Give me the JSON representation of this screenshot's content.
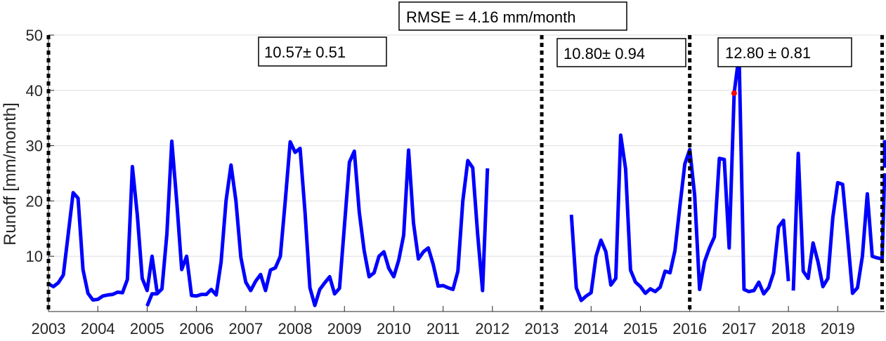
{
  "chart_data": {
    "type": "line",
    "title": "",
    "xlabel": "",
    "ylabel": "Runoff [mm/month]",
    "xlim": [
      2003,
      2019.95
    ],
    "ylim": [
      0,
      50
    ],
    "y_ticks": [
      10,
      20,
      30,
      40,
      50
    ],
    "x_tick_labels": [
      "2003",
      "2004",
      "2005",
      "2006",
      "2007",
      "2008",
      "2009",
      "2010",
      "2011",
      "2012",
      "2013",
      "2014",
      "2015",
      "2016",
      "2017",
      "2018",
      "2019"
    ],
    "grid": "horizontal",
    "annotations": {
      "rmse": "RMSE = 4.16 mm/month",
      "period1": "10.57± 0.51",
      "period2": "10.80± 0.94",
      "period3": "12.80 ± 0.81"
    },
    "series": [
      {
        "color": "#0000ff",
        "segments": [
          [
            [
              2003.0,
              5.0
            ],
            [
              2003.1,
              4.5
            ],
            [
              2003.2,
              5.2
            ],
            [
              2003.3,
              6.6
            ],
            [
              2003.4,
              14.0
            ],
            [
              2003.5,
              21.5
            ],
            [
              2003.6,
              20.5
            ],
            [
              2003.7,
              7.6
            ],
            [
              2003.8,
              3.3
            ],
            [
              2003.9,
              2.1
            ],
            [
              2004.0,
              2.2
            ],
            [
              2004.1,
              2.8
            ],
            [
              2004.2,
              3.0
            ],
            [
              2004.3,
              3.1
            ],
            [
              2004.4,
              3.5
            ],
            [
              2004.5,
              3.4
            ],
            [
              2004.6,
              5.8
            ],
            [
              2004.7,
              26.2
            ],
            [
              2004.8,
              17.5
            ],
            [
              2004.9,
              6.0
            ],
            [
              2005.0,
              3.8
            ],
            [
              2005.1,
              10.0
            ],
            [
              2005.2,
              3.6
            ]
          ],
          [
            [
              2005.0,
              1.0
            ],
            [
              2005.1,
              3.2
            ],
            [
              2005.2,
              3.2
            ],
            [
              2005.3,
              4.1
            ],
            [
              2005.4,
              14.0
            ],
            [
              2005.5,
              30.8
            ],
            [
              2005.6,
              20.0
            ],
            [
              2005.7,
              7.6
            ],
            [
              2005.8,
              10.0
            ],
            [
              2005.9,
              2.9
            ],
            [
              2006.0,
              2.8
            ],
            [
              2006.1,
              3.1
            ],
            [
              2006.2,
              3.1
            ],
            [
              2006.3,
              4.0
            ],
            [
              2006.4,
              3.0
            ],
            [
              2006.5,
              9.0
            ],
            [
              2006.6,
              20.0
            ],
            [
              2006.7,
              26.5
            ],
            [
              2006.8,
              20.0
            ],
            [
              2006.9,
              9.8
            ],
            [
              2007.0,
              5.3
            ],
            [
              2007.1,
              3.8
            ],
            [
              2007.2,
              5.5
            ],
            [
              2007.3,
              6.7
            ],
            [
              2007.4,
              3.8
            ],
            [
              2007.5,
              7.5
            ],
            [
              2007.6,
              7.9
            ],
            [
              2007.7,
              10.0
            ],
            [
              2007.8,
              20.0
            ],
            [
              2007.9,
              30.7
            ],
            [
              2008.0,
              28.8
            ],
            [
              2008.1,
              29.5
            ],
            [
              2008.2,
              18.0
            ],
            [
              2008.3,
              4.3
            ],
            [
              2008.4,
              1.1
            ],
            [
              2008.5,
              4.0
            ],
            [
              2008.6,
              5.2
            ],
            [
              2008.7,
              6.3
            ],
            [
              2008.8,
              3.2
            ],
            [
              2008.9,
              4.2
            ],
            [
              2009.0,
              15.5
            ],
            [
              2009.1,
              27.0
            ],
            [
              2009.2,
              29.0
            ],
            [
              2009.3,
              18.0
            ],
            [
              2009.4,
              11.0
            ],
            [
              2009.5,
              6.3
            ],
            [
              2009.6,
              7.0
            ],
            [
              2009.7,
              10.0
            ],
            [
              2009.8,
              10.8
            ],
            [
              2009.9,
              7.8
            ],
            [
              2010.0,
              6.3
            ],
            [
              2010.1,
              9.3
            ],
            [
              2010.2,
              13.8
            ],
            [
              2010.3,
              29.2
            ],
            [
              2010.4,
              16.0
            ],
            [
              2010.5,
              9.5
            ],
            [
              2010.6,
              10.8
            ],
            [
              2010.7,
              11.5
            ],
            [
              2010.8,
              8.5
            ],
            [
              2010.9,
              4.6
            ],
            [
              2011.0,
              4.7
            ],
            [
              2011.1,
              4.3
            ],
            [
              2011.2,
              4.0
            ],
            [
              2011.3,
              7.3
            ],
            [
              2011.4,
              20.0
            ],
            [
              2011.5,
              27.3
            ],
            [
              2011.6,
              26.0
            ],
            [
              2011.7,
              14.0
            ],
            [
              2011.8,
              3.8
            ],
            [
              2011.9,
              25.9
            ]
          ],
          [
            [
              2013.6,
              17.5
            ],
            [
              2013.7,
              4.3
            ],
            [
              2013.8,
              2.0
            ],
            [
              2013.9,
              2.8
            ],
            [
              2014.0,
              3.4
            ],
            [
              2014.1,
              10.0
            ],
            [
              2014.2,
              12.9
            ],
            [
              2014.3,
              10.8
            ],
            [
              2014.4,
              4.8
            ],
            [
              2014.5,
              6.0
            ],
            [
              2014.6,
              31.9
            ],
            [
              2014.7,
              25.8
            ],
            [
              2014.8,
              7.5
            ],
            [
              2014.9,
              5.3
            ],
            [
              2015.0,
              4.5
            ],
            [
              2015.1,
              3.3
            ],
            [
              2015.2,
              4.1
            ],
            [
              2015.3,
              3.6
            ],
            [
              2015.4,
              4.4
            ],
            [
              2015.5,
              7.3
            ],
            [
              2015.6,
              7.0
            ],
            [
              2015.7,
              11.0
            ],
            [
              2015.8,
              19.0
            ],
            [
              2015.9,
              26.7
            ],
            [
              2016.0,
              29.3
            ],
            [
              2016.1,
              21.0
            ],
            [
              2016.2,
              4.0
            ],
            [
              2016.3,
              9.0
            ],
            [
              2016.4,
              11.5
            ],
            [
              2016.5,
              13.5
            ],
            [
              2016.6,
              27.7
            ],
            [
              2016.7,
              27.5
            ],
            [
              2016.8,
              11.5
            ],
            [
              2016.9,
              39.5
            ],
            [
              2017.0,
              46.5
            ],
            [
              2017.1,
              4.0
            ],
            [
              2017.2,
              3.6
            ],
            [
              2017.3,
              3.8
            ],
            [
              2017.4,
              5.3
            ],
            [
              2017.5,
              3.2
            ],
            [
              2017.6,
              4.3
            ],
            [
              2017.7,
              7.0
            ],
            [
              2017.8,
              15.3
            ],
            [
              2017.9,
              16.5
            ],
            [
              2018.0,
              5.5
            ]
          ],
          [
            [
              2018.1,
              3.8
            ],
            [
              2018.2,
              28.6
            ],
            [
              2018.3,
              7.3
            ],
            [
              2018.4,
              6.0
            ],
            [
              2018.5,
              12.4
            ],
            [
              2018.6,
              9.0
            ],
            [
              2018.7,
              4.5
            ],
            [
              2018.8,
              6.0
            ],
            [
              2018.9,
              17.0
            ],
            [
              2019.0,
              23.3
            ],
            [
              2019.1,
              23.0
            ],
            [
              2019.2,
              13.5
            ],
            [
              2019.3,
              3.3
            ],
            [
              2019.4,
              4.3
            ],
            [
              2019.5,
              10.0
            ],
            [
              2019.6,
              21.3
            ],
            [
              2019.7,
              10.0
            ],
            [
              2019.8,
              9.7
            ],
            [
              2019.9,
              9.5
            ],
            [
              2019.95,
              25.0
            ]
          ],
          [
            [
              2019.95,
              31.0
            ],
            [
              2019.95,
              26.0
            ]
          ]
        ]
      }
    ],
    "red_points": [
      [
        2016.9,
        39.5
      ],
      [
        2017.0,
        46.5
      ]
    ],
    "boundaries": [
      2003.0,
      2013.0,
      2016.0,
      2019.9
    ]
  }
}
